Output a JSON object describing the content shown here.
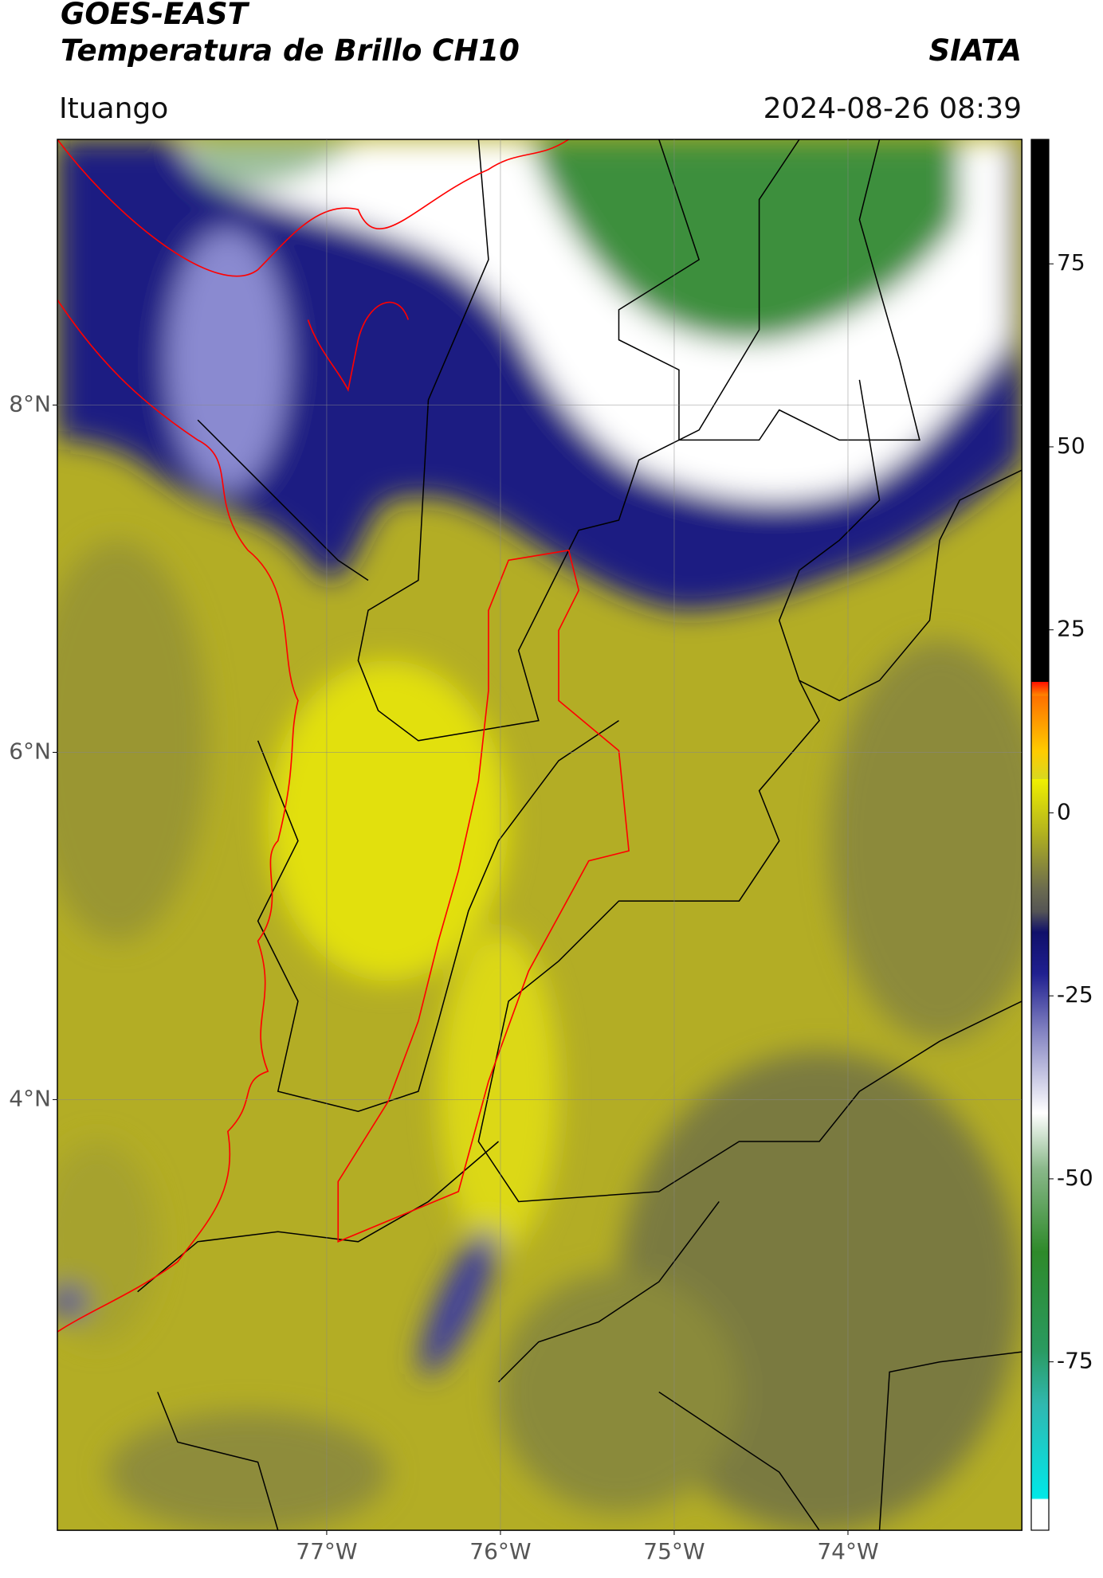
{
  "header": {
    "title": "GOES-EAST",
    "subtitle": "Temperatura de Brillo CH10",
    "agency": "SIATA",
    "location": "Ituango",
    "datetime": "2024-08-26 08:39"
  },
  "map": {
    "latlim": [
      1.52,
      9.53
    ],
    "lonlim": [
      -78.55,
      -73.0
    ],
    "yticks": [
      {
        "value": 8,
        "label": "8°N"
      },
      {
        "value": 6,
        "label": "6°N"
      },
      {
        "value": 4,
        "label": "4°N"
      }
    ],
    "xticks": [
      {
        "value": -77,
        "label": "77°W"
      },
      {
        "value": -76,
        "label": "76°W"
      },
      {
        "value": -75,
        "label": "75°W"
      },
      {
        "value": -74,
        "label": "74°W"
      }
    ]
  },
  "colorbar": {
    "lim": [
      -98,
      92
    ],
    "ticks": [
      75,
      50,
      25,
      0,
      -25,
      -50,
      -75
    ]
  }
}
